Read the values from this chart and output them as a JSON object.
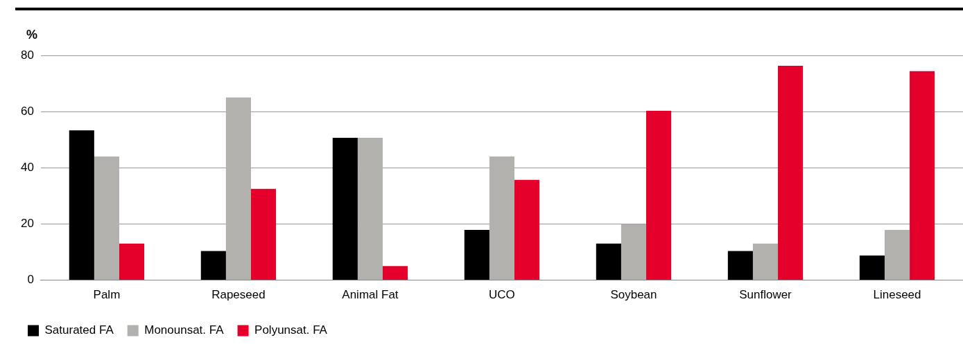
{
  "chart_data": {
    "type": "bar",
    "ylabel": "%",
    "categories": [
      "Palm",
      "Rapeseed",
      "Animal Fat",
      "UCO",
      "Soybean",
      "Sunflower",
      "Lineseed"
    ],
    "series": [
      {
        "name": "Saturated FA",
        "color": "#000000",
        "values": [
          53.3,
          10.4,
          50.7,
          17.9,
          13,
          10.4,
          8.8
        ]
      },
      {
        "name": "Monounsat. FA",
        "color": "#b2b1ad",
        "values": [
          44,
          65,
          50.7,
          44,
          20,
          13,
          17.9
        ]
      },
      {
        "name": "Polyunsat. FA",
        "color": "#e4002b",
        "values": [
          13,
          32.5,
          5,
          35.7,
          60.3,
          76.3,
          74.4
        ]
      }
    ],
    "ylim": [
      0,
      80
    ],
    "yticks": [
      0,
      20,
      40,
      60,
      80
    ],
    "grid": "y",
    "legend": "bottom left"
  }
}
